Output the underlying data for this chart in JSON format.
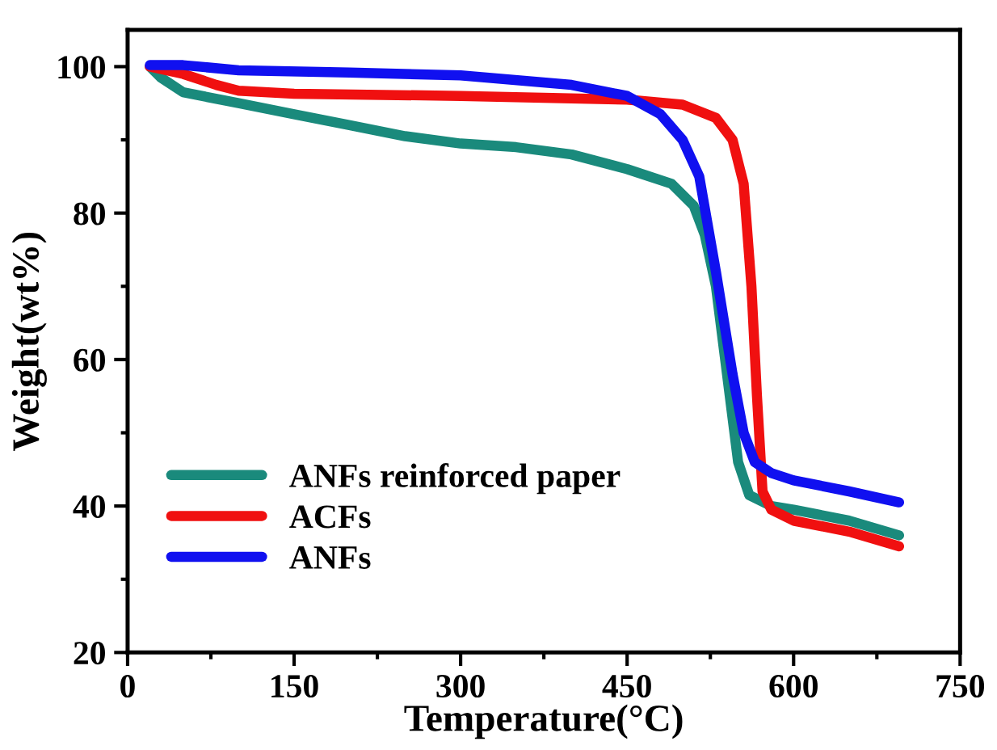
{
  "chart_data": {
    "type": "line",
    "xlabel": "Temperature(°C)",
    "ylabel": "Weight(wt%)",
    "xlim": [
      0,
      750
    ],
    "ylim": [
      20,
      105
    ],
    "xticks": [
      0,
      150,
      300,
      450,
      600,
      750
    ],
    "yticks": [
      20,
      40,
      60,
      80,
      100
    ],
    "legend": "bottom left",
    "grid": false,
    "marker": "none",
    "line_style": "solid",
    "series": [
      {
        "name": "ANFs reinforced paper",
        "color": "#1a8a7c",
        "x": [
          20,
          30,
          50,
          100,
          150,
          200,
          250,
          300,
          350,
          400,
          450,
          490,
          510,
          520,
          530,
          540,
          550,
          560,
          580,
          600,
          650,
          695
        ],
        "values": [
          100,
          98.5,
          96.5,
          95,
          93.5,
          92,
          90.5,
          89.5,
          89,
          88,
          86,
          84,
          81,
          77,
          70,
          58,
          46,
          41.5,
          40,
          39.5,
          38,
          36
        ]
      },
      {
        "name": "ACFs",
        "color": "#f01010",
        "x": [
          20,
          50,
          80,
          100,
          150,
          300,
          450,
          500,
          530,
          545,
          555,
          562,
          567,
          572,
          580,
          600,
          650,
          695
        ],
        "values": [
          100,
          99,
          97.5,
          96.7,
          96.3,
          96,
          95.5,
          94.8,
          93,
          90,
          84,
          70,
          55,
          42,
          39.5,
          38,
          36.5,
          34.5
        ]
      },
      {
        "name": "ANFs",
        "color": "#1010f0",
        "x": [
          20,
          50,
          100,
          200,
          300,
          400,
          450,
          480,
          500,
          515,
          530,
          545,
          555,
          565,
          580,
          600,
          650,
          695
        ],
        "values": [
          100.2,
          100.2,
          99.5,
          99.2,
          98.8,
          97.5,
          96,
          93.5,
          90,
          85,
          72,
          58,
          50,
          46,
          44.5,
          43.5,
          42,
          40.5
        ]
      }
    ]
  }
}
